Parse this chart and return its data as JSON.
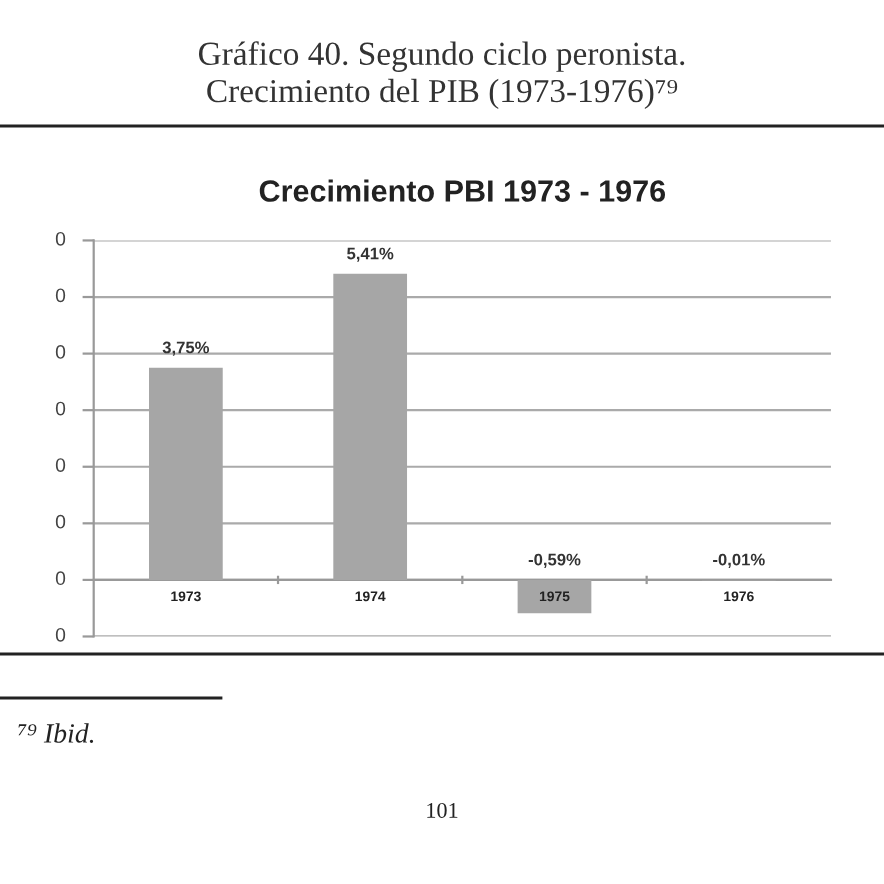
{
  "chart_data": {
    "type": "bar",
    "title": "Gráfico 40. Segundo ciclo peronista.\nCrecimiento del PIB (1973-1976)⁷⁹",
    "subtitle": "Crecimiento PBI 1973 - 1976",
    "annotations": [
      "⁷⁹ Ibid.",
      "101",
      "0",
      "0",
      "0",
      "0",
      "0",
      "0",
      "0",
      "0"
    ],
    "categories": [
      "1973",
      "1974",
      "1975",
      "1976"
    ],
    "values": [
      3.75,
      5.41,
      -0.59,
      -0.01
    ],
    "value_labels": [
      "3,75%",
      "5,41%",
      "-0,59%",
      "-0,01%"
    ],
    "color": "#a6a6a6",
    "ylim": [
      -1,
      6
    ],
    "yticks": [
      {
        "value": -1,
        "label": null
      },
      {
        "value": 0,
        "label": null
      },
      {
        "value": 1,
        "label": null
      },
      {
        "value": 2,
        "label": null
      },
      {
        "value": 3,
        "label": null
      },
      {
        "value": 4,
        "label": null
      },
      {
        "value": 5,
        "label": null
      },
      {
        "value": 6,
        "label": null
      }
    ],
    "grid": "y"
  }
}
